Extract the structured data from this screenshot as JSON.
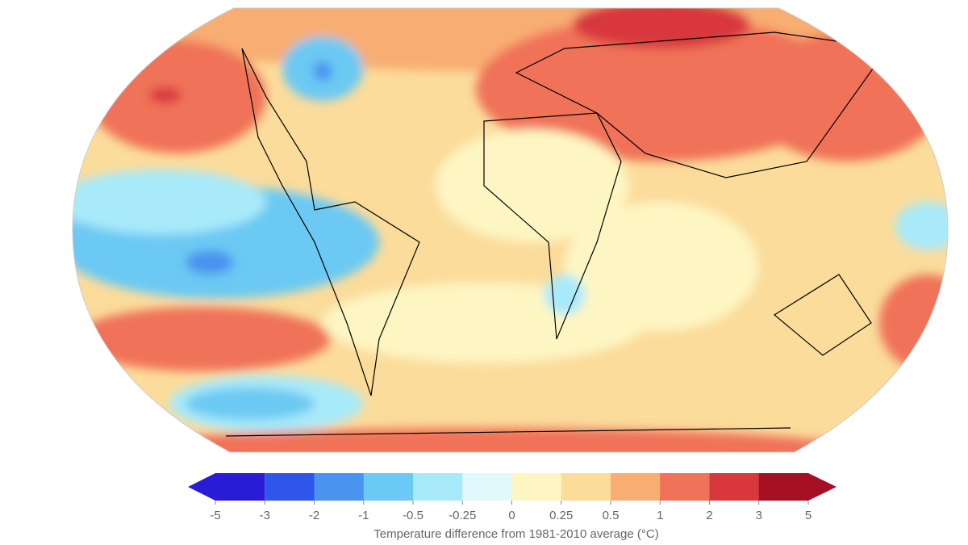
{
  "colorbar": {
    "label": "Temperature difference from 1981-2010 average (°C)",
    "levels": [
      -5,
      -3,
      -2,
      -1,
      -0.5,
      -0.25,
      0,
      0.25,
      0.5,
      1,
      2,
      3,
      5
    ],
    "colors": [
      "#2a1bd6",
      "#2f56ea",
      "#4a93ee",
      "#6cc9f3",
      "#a8eafa",
      "#e1f8fc",
      "#fdf6c3",
      "#fbdc9b",
      "#f8ad72",
      "#f07259",
      "#d8373c",
      "#a60f24"
    ]
  }
}
